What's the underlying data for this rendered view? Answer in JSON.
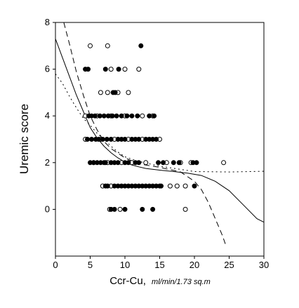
{
  "chart_data": {
    "type": "scatter",
    "title": "",
    "xlabel": "Ccr-Cu,",
    "xlabel_units": "ml/min/1.73 sq.m",
    "ylabel": "Uremic score",
    "xlim": [
      0,
      30
    ],
    "ylim": [
      -2,
      8
    ],
    "x_ticks": [
      0,
      5,
      10,
      15,
      20,
      25,
      30
    ],
    "y_ticks": [
      0,
      2,
      4,
      6,
      8
    ],
    "grid": false,
    "legend": "none",
    "colors": {
      "axis": "#000000",
      "filled_marker": "#000000",
      "open_marker": "#ffffff",
      "line": "#000000"
    },
    "series": [
      {
        "marker": "open-circle",
        "points": [
          [
            5,
            7
          ],
          [
            7.5,
            7
          ],
          [
            8,
            6
          ],
          [
            10,
            6
          ],
          [
            12,
            6
          ],
          [
            6.5,
            5
          ],
          [
            7.5,
            5
          ],
          [
            9,
            5
          ],
          [
            10.5,
            5
          ],
          [
            4.3,
            4
          ],
          [
            6,
            4
          ],
          [
            8,
            4
          ],
          [
            10,
            4
          ],
          [
            12.5,
            4
          ],
          [
            14,
            4
          ],
          [
            4.3,
            3
          ],
          [
            6.5,
            3
          ],
          [
            8.5,
            3
          ],
          [
            10.5,
            3
          ],
          [
            12.5,
            3
          ],
          [
            15,
            3
          ],
          [
            5.5,
            2
          ],
          [
            7.5,
            2
          ],
          [
            9.5,
            2
          ],
          [
            11,
            2
          ],
          [
            13,
            2
          ],
          [
            16,
            2
          ],
          [
            18,
            2
          ],
          [
            19.5,
            2
          ],
          [
            24.2,
            2
          ],
          [
            6.8,
            1
          ],
          [
            8,
            1
          ],
          [
            16.5,
            1
          ],
          [
            17.5,
            1
          ],
          [
            18.7,
            1
          ],
          [
            7.8,
            0
          ],
          [
            9.3,
            0
          ],
          [
            18.7,
            0
          ]
        ]
      },
      {
        "marker": "filled-circle",
        "points": [
          [
            12.3,
            7
          ],
          [
            4.3,
            6
          ],
          [
            4.7,
            6
          ],
          [
            7.2,
            6
          ],
          [
            9.1,
            6
          ],
          [
            8.3,
            5
          ],
          [
            8.6,
            5
          ],
          [
            4.8,
            4
          ],
          [
            5.2,
            4
          ],
          [
            5.7,
            4
          ],
          [
            6.4,
            4
          ],
          [
            7,
            4
          ],
          [
            7.6,
            4
          ],
          [
            8.2,
            4
          ],
          [
            8.8,
            4
          ],
          [
            9.5,
            4
          ],
          [
            10.3,
            4
          ],
          [
            11,
            4
          ],
          [
            11.8,
            4
          ],
          [
            13.5,
            4
          ],
          [
            14.2,
            4
          ],
          [
            4.6,
            3
          ],
          [
            5.2,
            3
          ],
          [
            5.8,
            3
          ],
          [
            6.2,
            3
          ],
          [
            6.8,
            3
          ],
          [
            7.4,
            3
          ],
          [
            8,
            3
          ],
          [
            9,
            3
          ],
          [
            9.5,
            3
          ],
          [
            10,
            3
          ],
          [
            11,
            3
          ],
          [
            11.5,
            3
          ],
          [
            12,
            3
          ],
          [
            13,
            3
          ],
          [
            13.5,
            3
          ],
          [
            14,
            3
          ],
          [
            14.5,
            3
          ],
          [
            5,
            2
          ],
          [
            5.5,
            2
          ],
          [
            6,
            2
          ],
          [
            6.5,
            2
          ],
          [
            7,
            2
          ],
          [
            7.2,
            2
          ],
          [
            8,
            2
          ],
          [
            8.5,
            2
          ],
          [
            9,
            2
          ],
          [
            10,
            2
          ],
          [
            10.5,
            2
          ],
          [
            11.5,
            2
          ],
          [
            12,
            2
          ],
          [
            14.8,
            2
          ],
          [
            15.5,
            2
          ],
          [
            17,
            2
          ],
          [
            17.8,
            2
          ],
          [
            19.8,
            2
          ],
          [
            20.3,
            2
          ],
          [
            7.2,
            1
          ],
          [
            7.5,
            1
          ],
          [
            8.5,
            1
          ],
          [
            9,
            1
          ],
          [
            9.5,
            1
          ],
          [
            10,
            1
          ],
          [
            10.5,
            1
          ],
          [
            11,
            1
          ],
          [
            11.5,
            1
          ],
          [
            12,
            1
          ],
          [
            12.5,
            1
          ],
          [
            13,
            1
          ],
          [
            13.5,
            1
          ],
          [
            14,
            1
          ],
          [
            14.5,
            1
          ],
          [
            15,
            1
          ],
          [
            15.2,
            1
          ],
          [
            20,
            1
          ],
          [
            8,
            0
          ],
          [
            8.5,
            0
          ],
          [
            10,
            0
          ],
          [
            12.5,
            0
          ],
          [
            14,
            0
          ]
        ]
      }
    ],
    "fit_lines": [
      {
        "style": "solid",
        "points": [
          [
            0,
            7.3
          ],
          [
            1,
            6.5
          ],
          [
            2,
            5.7
          ],
          [
            3,
            4.9
          ],
          [
            4,
            4.2
          ],
          [
            5,
            3.5
          ],
          [
            6,
            3.05
          ],
          [
            7,
            2.7
          ],
          [
            8,
            2.42
          ],
          [
            9,
            2.2
          ],
          [
            10,
            2.02
          ],
          [
            11,
            1.9
          ],
          [
            12,
            1.82
          ],
          [
            13,
            1.75
          ],
          [
            15,
            1.68
          ],
          [
            17,
            1.62
          ],
          [
            19,
            1.55
          ],
          [
            21,
            1.45
          ],
          [
            23,
            1.2
          ],
          [
            25,
            0.8
          ],
          [
            27,
            0.2
          ],
          [
            29,
            -0.4
          ],
          [
            30,
            -0.55
          ]
        ]
      },
      {
        "style": "dashed",
        "points": [
          [
            1.2,
            8
          ],
          [
            2,
            7.1
          ],
          [
            3,
            5.9
          ],
          [
            4,
            4.9
          ],
          [
            5,
            4
          ],
          [
            6,
            3.4
          ],
          [
            7,
            2.9
          ],
          [
            8,
            2.6
          ],
          [
            10,
            2.2
          ],
          [
            12,
            1.95
          ],
          [
            15,
            1.8
          ],
          [
            18,
            1.6
          ],
          [
            20,
            1.2
          ],
          [
            21,
            0.85
          ],
          [
            22,
            0.3
          ],
          [
            23,
            -0.4
          ],
          [
            24,
            -1.1
          ],
          [
            24.6,
            -1.6
          ]
        ]
      },
      {
        "style": "dotted",
        "points": [
          [
            0,
            5.8
          ],
          [
            1,
            5.4
          ],
          [
            2,
            4.85
          ],
          [
            3,
            4.35
          ],
          [
            4,
            3.9
          ],
          [
            5,
            3.6
          ],
          [
            6,
            3.25
          ],
          [
            7,
            3
          ],
          [
            8,
            2.7
          ],
          [
            9,
            2.45
          ],
          [
            10,
            2.25
          ],
          [
            12,
            2.05
          ],
          [
            15,
            1.85
          ],
          [
            20,
            1.62
          ],
          [
            25,
            1.6
          ],
          [
            30,
            1.63
          ]
        ]
      }
    ]
  }
}
